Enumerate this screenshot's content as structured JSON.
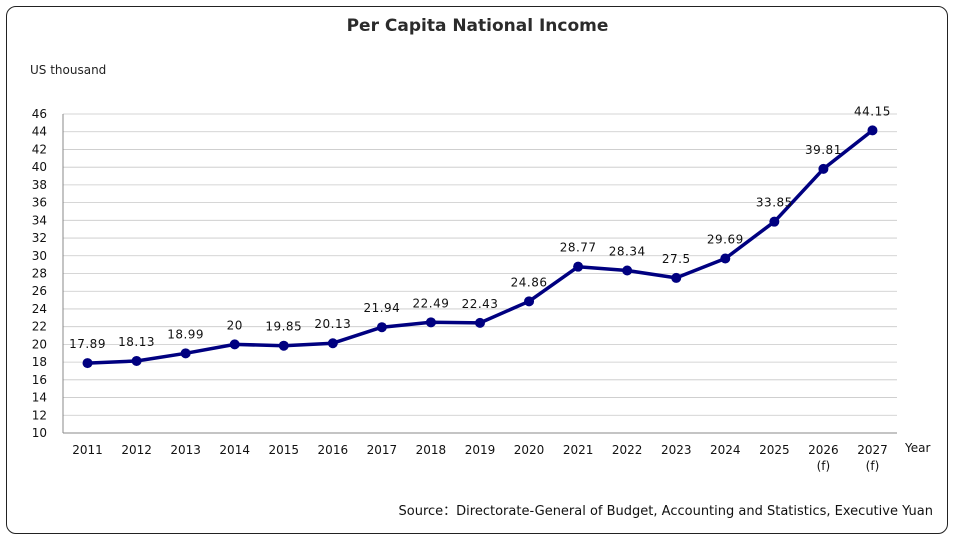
{
  "chart_data": {
    "type": "line",
    "title": "Per Capita National Income",
    "ylabel": "US thousand",
    "xlabel": "Year",
    "source": "Source：Directorate-General of Budget, Accounting and Statistics, Executive Yuan",
    "ylim": [
      10,
      46
    ],
    "ytick_step": 2,
    "grid": true,
    "colors": {
      "line": "#000080",
      "grid": "#c8c8c8",
      "axis": "#888888"
    },
    "categories": [
      [
        "2011"
      ],
      [
        "2012"
      ],
      [
        "2013"
      ],
      [
        "2014"
      ],
      [
        "2015"
      ],
      [
        "2016"
      ],
      [
        "2017"
      ],
      [
        "2018"
      ],
      [
        "2019"
      ],
      [
        "2020"
      ],
      [
        "2021"
      ],
      [
        "2022"
      ],
      [
        "2023"
      ],
      [
        "2024"
      ],
      [
        "2025"
      ],
      [
        "2026",
        "(f)"
      ],
      [
        "2027",
        "(f)"
      ]
    ],
    "values": [
      17.89,
      18.13,
      18.99,
      20,
      19.85,
      20.13,
      21.94,
      22.49,
      22.43,
      24.86,
      28.77,
      28.34,
      27.5,
      29.69,
      33.85,
      39.81,
      44.15
    ],
    "value_labels": [
      "17.89",
      "18.13",
      "18.99",
      "20",
      "19.85",
      "20.13",
      "21.94",
      "22.49",
      "22.43",
      "24.86",
      "28.77",
      "28.34",
      "27.5",
      "29.69",
      "33.85",
      "39.81",
      "44.15"
    ]
  }
}
